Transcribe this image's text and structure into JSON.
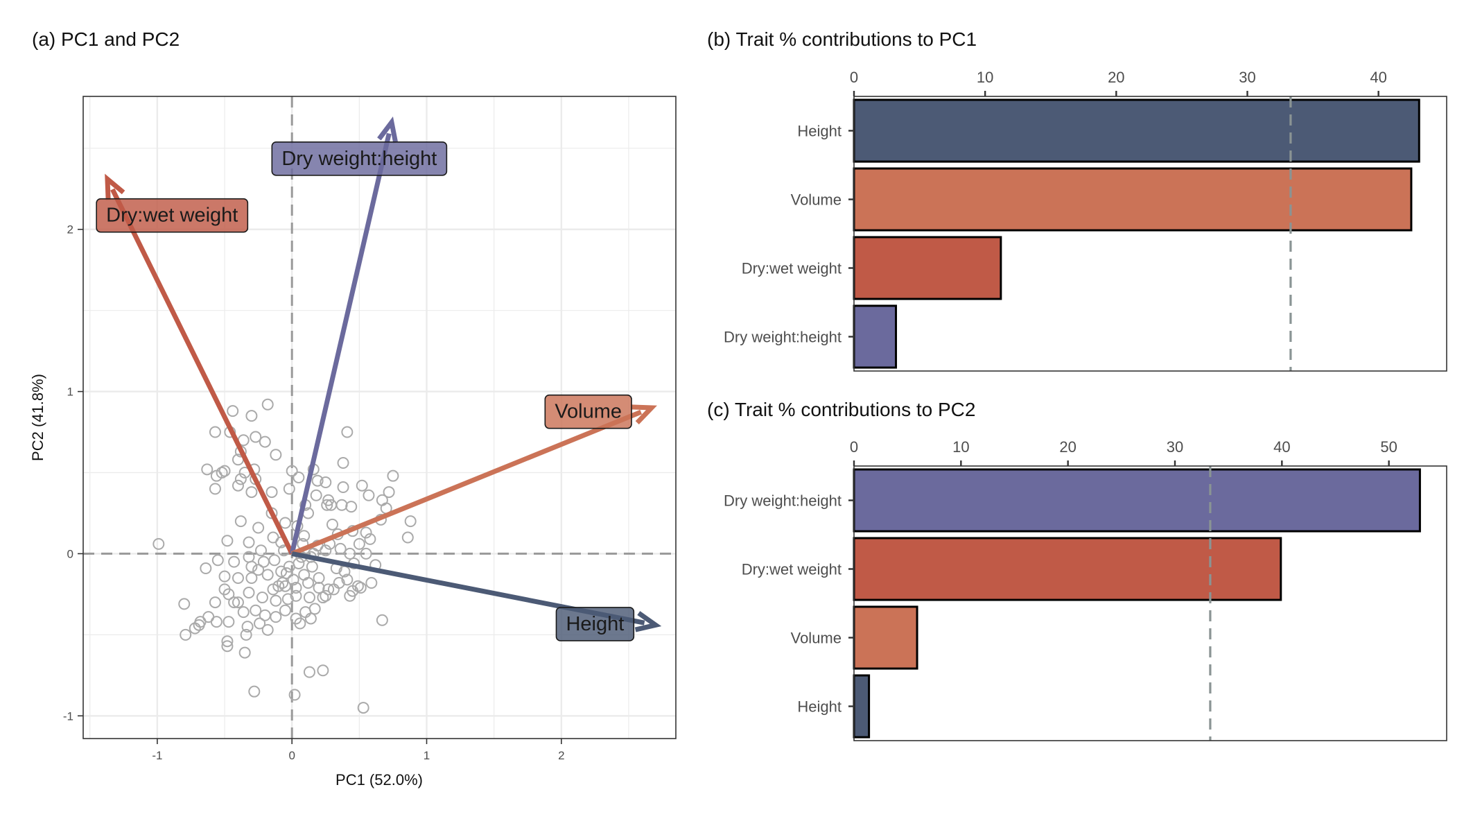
{
  "colors": {
    "height": "#4c5a75",
    "volume": "#cb7357",
    "drywet": "#c05a47",
    "dryheight": "#6b6a9d",
    "points": "#aaaaaa",
    "grid": "#ebebeb",
    "ref": "#999999",
    "threshold": "#8a9494"
  },
  "chart_data": [
    {
      "type": "scatter",
      "title": "(a) PC1 and PC2",
      "xlabel": "PC1 (52.0%)",
      "ylabel": "PC2 (41.8%)",
      "xlim": [
        -1.55,
        2.85
      ],
      "ylim": [
        -1.14,
        2.82
      ],
      "xticks": [
        "-1",
        "0",
        "1",
        "2"
      ],
      "yticks": [
        "-1",
        "0",
        "1",
        "2"
      ],
      "grid": true,
      "vectors": [
        {
          "label": "Dry:wet weight",
          "color_key": "drywet",
          "x": -1.37,
          "y": 2.31,
          "lx": -0.89,
          "ly": 2.09
        },
        {
          "label": "Dry weight:height",
          "color_key": "dryheight",
          "x": 0.74,
          "y": 2.66,
          "lx": 0.5,
          "ly": 2.44
        },
        {
          "label": "Volume",
          "color_key": "volume",
          "x": 2.67,
          "y": 0.9,
          "lx": 2.2,
          "ly": 0.88
        },
        {
          "label": "Height",
          "color_key": "height",
          "x": 2.7,
          "y": -0.44,
          "lx": 2.25,
          "ly": -0.43
        }
      ],
      "points": [
        [
          -0.99,
          0.06
        ],
        [
          -0.57,
          0.75
        ],
        [
          -0.44,
          0.88
        ],
        [
          -0.3,
          0.85
        ],
        [
          -0.18,
          0.92
        ],
        [
          -0.36,
          0.7
        ],
        [
          -0.27,
          0.72
        ],
        [
          -0.2,
          0.69
        ],
        [
          -0.12,
          0.61
        ],
        [
          -0.38,
          0.63
        ],
        [
          -0.63,
          0.52
        ],
        [
          -0.56,
          0.48
        ],
        [
          -0.5,
          0.51
        ],
        [
          -0.46,
          0.75
        ],
        [
          -0.4,
          0.58
        ],
        [
          -0.35,
          0.5
        ],
        [
          -0.28,
          0.52
        ],
        [
          -0.38,
          0.46
        ],
        [
          -0.15,
          0.38
        ],
        [
          -0.3,
          0.38
        ],
        [
          -0.57,
          0.4
        ],
        [
          -0.4,
          0.42
        ],
        [
          -0.27,
          0.46
        ],
        [
          0.0,
          0.51
        ],
        [
          0.05,
          0.47
        ],
        [
          0.16,
          0.52
        ],
        [
          0.25,
          0.44
        ],
        [
          0.29,
          0.3
        ],
        [
          0.38,
          0.41
        ],
        [
          0.52,
          0.42
        ],
        [
          0.44,
          0.29
        ],
        [
          0.57,
          0.36
        ],
        [
          0.67,
          0.33
        ],
        [
          0.75,
          0.48
        ],
        [
          0.72,
          0.38
        ],
        [
          0.88,
          0.2
        ],
        [
          0.86,
          0.1
        ],
        [
          0.7,
          0.28
        ],
        [
          0.66,
          0.21
        ],
        [
          0.38,
          0.56
        ],
        [
          0.41,
          0.75
        ],
        [
          0.26,
          0.3
        ],
        [
          0.18,
          0.36
        ],
        [
          0.12,
          0.25
        ],
        [
          0.34,
          0.12
        ],
        [
          0.45,
          0.14
        ],
        [
          0.55,
          0.13
        ],
        [
          0.5,
          0.06
        ],
        [
          0.36,
          0.03
        ],
        [
          0.43,
          0.0
        ],
        [
          0.58,
          0.09
        ],
        [
          0.25,
          0.02
        ],
        [
          0.19,
          0.05
        ],
        [
          0.09,
          0.11
        ],
        [
          0.04,
          0.17
        ],
        [
          -0.05,
          0.19
        ],
        [
          -0.15,
          0.25
        ],
        [
          -0.25,
          0.16
        ],
        [
          -0.38,
          0.2
        ],
        [
          -0.48,
          0.08
        ],
        [
          -0.32,
          0.07
        ],
        [
          -0.23,
          0.02
        ],
        [
          -0.14,
          0.1
        ],
        [
          -0.06,
          0.02
        ],
        [
          0.07,
          -0.02
        ],
        [
          -0.32,
          -0.02
        ],
        [
          -0.43,
          -0.05
        ],
        [
          -0.55,
          -0.04
        ],
        [
          -0.64,
          -0.09
        ],
        [
          -0.5,
          -0.14
        ],
        [
          -0.4,
          -0.15
        ],
        [
          -0.3,
          -0.15
        ],
        [
          -0.18,
          -0.13
        ],
        [
          -0.08,
          -0.11
        ],
        [
          0.01,
          -0.16
        ],
        [
          0.09,
          -0.13
        ],
        [
          0.15,
          -0.08
        ],
        [
          0.2,
          -0.21
        ],
        [
          0.27,
          -0.22
        ],
        [
          0.33,
          -0.09
        ],
        [
          0.41,
          -0.16
        ],
        [
          0.45,
          -0.23
        ],
        [
          0.51,
          -0.21
        ],
        [
          0.59,
          -0.18
        ],
        [
          0.62,
          -0.07
        ],
        [
          0.35,
          -0.18
        ],
        [
          0.25,
          -0.26
        ],
        [
          0.13,
          -0.27
        ],
        [
          0.03,
          -0.26
        ],
        [
          -0.05,
          -0.2
        ],
        [
          -0.14,
          -0.22
        ],
        [
          -0.22,
          -0.27
        ],
        [
          -0.32,
          -0.24
        ],
        [
          -0.4,
          -0.3
        ],
        [
          -0.47,
          -0.25
        ],
        [
          -0.5,
          -0.22
        ],
        [
          -0.57,
          -0.3
        ],
        [
          -0.62,
          -0.39
        ],
        [
          -0.68,
          -0.42
        ],
        [
          -0.72,
          -0.46
        ],
        [
          -0.79,
          -0.5
        ],
        [
          -0.8,
          -0.31
        ],
        [
          -0.69,
          -0.44
        ],
        [
          -0.56,
          -0.42
        ],
        [
          -0.47,
          -0.42
        ],
        [
          -0.43,
          -0.3
        ],
        [
          -0.36,
          -0.36
        ],
        [
          -0.27,
          -0.35
        ],
        [
          -0.2,
          -0.38
        ],
        [
          -0.12,
          -0.39
        ],
        [
          -0.05,
          -0.35
        ],
        [
          0.03,
          -0.4
        ],
        [
          0.1,
          -0.36
        ],
        [
          0.17,
          -0.34
        ],
        [
          0.23,
          -0.27
        ],
        [
          0.31,
          -0.22
        ],
        [
          -0.33,
          -0.45
        ],
        [
          -0.24,
          -0.43
        ],
        [
          -0.18,
          -0.47
        ],
        [
          -0.34,
          -0.5
        ],
        [
          -0.48,
          -0.54
        ],
        [
          -0.48,
          -0.57
        ],
        [
          -0.35,
          -0.61
        ],
        [
          0.06,
          -0.43
        ],
        [
          0.14,
          -0.4
        ],
        [
          -0.12,
          -0.29
        ],
        [
          -0.07,
          -0.18
        ],
        [
          -0.02,
          -0.08
        ],
        [
          0.05,
          -0.06
        ],
        [
          -0.03,
          -0.28
        ],
        [
          -0.1,
          -0.2
        ],
        [
          -0.04,
          -0.12
        ],
        [
          0.03,
          -0.21
        ],
        [
          0.12,
          -0.18
        ],
        [
          0.2,
          -0.15
        ],
        [
          0.23,
          -0.72
        ],
        [
          0.13,
          -0.73
        ],
        [
          -0.28,
          -0.85
        ],
        [
          0.02,
          -0.87
        ],
        [
          0.53,
          -0.95
        ],
        [
          0.67,
          -0.41
        ],
        [
          0.46,
          -0.06
        ],
        [
          0.39,
          -0.11
        ],
        [
          0.3,
          0.18
        ],
        [
          -0.08,
          0.07
        ],
        [
          -0.13,
          -0.04
        ],
        [
          -0.21,
          -0.05
        ],
        [
          0.14,
          -0.02
        ],
        [
          0.1,
          0.3
        ],
        [
          0.08,
          0.06
        ],
        [
          0.28,
          0.06
        ],
        [
          0.55,
          0.0
        ],
        [
          0.49,
          -0.2
        ],
        [
          0.43,
          -0.26
        ],
        [
          0.16,
          0.0
        ],
        [
          0.27,
          0.33
        ],
        [
          0.37,
          0.3
        ],
        [
          0.19,
          0.45
        ],
        [
          -0.02,
          0.4
        ],
        [
          -0.52,
          0.5
        ],
        [
          -0.3,
          -0.08
        ],
        [
          -0.25,
          -0.1
        ]
      ]
    },
    {
      "type": "bar",
      "orientation": "horizontal",
      "title": "(b) Trait % contributions to PC1",
      "categories": [
        "Height",
        "Volume",
        "Dry:wet weight",
        "Dry weight:height"
      ],
      "values": [
        43.1,
        42.5,
        11.2,
        3.2
      ],
      "color_keys": [
        "height",
        "volume",
        "drywet",
        "dryheight"
      ],
      "xlim": [
        0,
        45.2
      ],
      "xticks": [
        "0",
        "10",
        "20",
        "30",
        "40"
      ],
      "threshold": 33.3,
      "xlabel": "",
      "ylabel": ""
    },
    {
      "type": "bar",
      "orientation": "horizontal",
      "title": "(c) Trait % contributions to PC2",
      "categories": [
        "Dry weight:height",
        "Dry:wet weight",
        "Volume",
        "Height"
      ],
      "values": [
        52.9,
        39.9,
        5.9,
        1.4
      ],
      "color_keys": [
        "dryheight",
        "drywet",
        "volume",
        "height"
      ],
      "xlim": [
        0,
        55.4
      ],
      "xticks": [
        "0",
        "10",
        "20",
        "30",
        "40",
        "50"
      ],
      "threshold": 33.3,
      "xlabel": "",
      "ylabel": ""
    }
  ]
}
